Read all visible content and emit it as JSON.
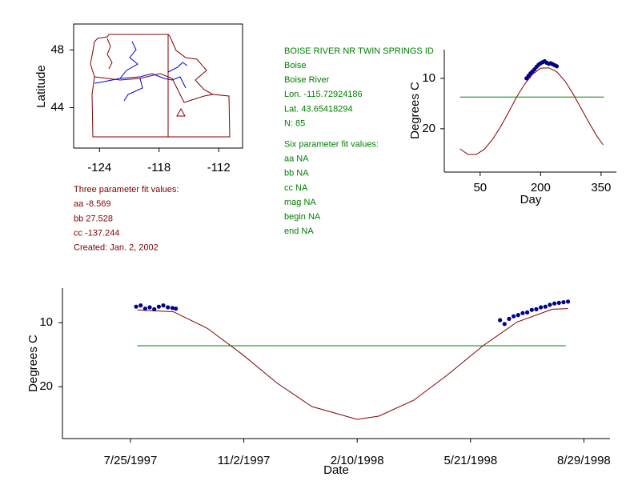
{
  "station_info": [
    "BOISE RIVER NR TWIN SPRINGS ID",
    "Boise",
    "Boise River",
    "Lon. -115.72924186",
    "Lat. 43.65418294",
    "N: 85",
    "Six parameter fit values:",
    "aa NA",
    "bb NA",
    "cc NA",
    "mag NA",
    "begin NA",
    "end NA"
  ],
  "three_parameter": [
    "Three parameter fit values:",
    "aa -8.569",
    "bb 27.528",
    "cc -137.244",
    "Created:   Jan. 2, 2002"
  ],
  "chart_data": [
    {
      "type": "map",
      "ylabel": "Latitude",
      "xlim": [
        -126.6,
        -109.6
      ],
      "ylim": [
        41.2,
        49.8
      ],
      "xticks": [
        -124,
        -118,
        -112
      ],
      "yticks": [
        44,
        48
      ]
    },
    {
      "type": "line",
      "xlabel": "Day",
      "ylabel": "Degrees C",
      "xlim": [
        -39,
        388
      ],
      "ylim": [
        28.6,
        4.3
      ],
      "xticks": [
        50,
        200,
        350
      ],
      "yticks": [
        20,
        10
      ],
      "series": [
        {
          "color": "#800000",
          "mode": "line",
          "x": [
            0,
            20,
            40,
            60,
            80,
            100,
            120,
            140,
            160,
            180,
            200,
            220,
            240,
            260,
            280,
            300,
            320,
            340,
            355
          ],
          "values": [
            24.0,
            25.1,
            25.1,
            24.1,
            22.2,
            19.7,
            16.8,
            13.8,
            11.2,
            9.2,
            8.0,
            7.9,
            8.7,
            10.5,
            13.0,
            15.9,
            18.8,
            21.5,
            23.2
          ]
        },
        {
          "color": "#008000",
          "mode": "line",
          "x": [
            0,
            357
          ],
          "values": [
            13.7,
            13.7
          ]
        },
        {
          "color": "#00008b",
          "mode": "points",
          "x": [
            165,
            170,
            175,
            180,
            185,
            190,
            195,
            200,
            205,
            210,
            215,
            220,
            225,
            230,
            235,
            240
          ],
          "values": [
            10.0,
            9.5,
            9.0,
            8.6,
            8.2,
            7.7,
            7.3,
            7.0,
            6.8,
            6.6,
            6.9,
            7.1,
            7.0,
            7.2,
            7.4,
            7.6
          ]
        }
      ]
    },
    {
      "type": "line",
      "xlabel": "Date",
      "ylabel": "Degrees C",
      "xlim": [
        "1997-05-26",
        "1998-09-21"
      ],
      "ylim": [
        28.1,
        4.6
      ],
      "xticks": [
        {
          "value": "1997-07-25",
          "label": "7/25/1997"
        },
        {
          "value": "1997-11-02",
          "label": "11/2/1997"
        },
        {
          "value": "1998-02-10",
          "label": "2/10/1998"
        },
        {
          "value": "1998-05-21",
          "label": "5/21/1998"
        },
        {
          "value": "1998-08-29",
          "label": "8/29/1998"
        }
      ],
      "yticks": [
        20,
        10
      ],
      "series": [
        {
          "color": "#800000",
          "mode": "line",
          "x": [
            "1997-07-31",
            "1997-09-01",
            "1997-10-01",
            "1997-11-01",
            "1997-12-01",
            "1998-01-01",
            "1998-02-10",
            "1998-03-01",
            "1998-04-01",
            "1998-05-01",
            "1998-06-01",
            "1998-07-01",
            "1998-08-01",
            "1998-08-15"
          ],
          "values": [
            8.0,
            8.3,
            10.9,
            15.0,
            19.4,
            23.1,
            25.1,
            24.6,
            22.1,
            18.1,
            13.6,
            9.9,
            7.9,
            7.8
          ]
        },
        {
          "color": "#008000",
          "mode": "line",
          "x": [
            "1997-07-31",
            "1998-08-13"
          ],
          "values": [
            13.6,
            13.6
          ]
        },
        {
          "color": "#00008b",
          "mode": "points",
          "x": [
            "1997-07-30",
            "1997-08-03",
            "1997-08-07",
            "1997-08-11",
            "1997-08-15",
            "1997-08-19",
            "1997-08-23",
            "1997-08-27",
            "1997-08-31",
            "1997-09-03",
            "1998-06-16",
            "1998-06-20",
            "1998-06-24",
            "1998-06-28",
            "1998-07-02",
            "1998-07-06",
            "1998-07-10",
            "1998-07-14",
            "1998-07-18",
            "1998-07-22",
            "1998-07-26",
            "1998-07-30",
            "1998-08-03",
            "1998-08-07",
            "1998-08-11",
            "1998-08-15"
          ],
          "values": [
            7.5,
            7.3,
            7.8,
            7.6,
            7.9,
            7.5,
            7.3,
            7.6,
            7.7,
            7.8,
            9.6,
            10.2,
            9.4,
            9.0,
            8.8,
            8.5,
            8.4,
            8.0,
            7.9,
            7.6,
            7.5,
            7.2,
            7.0,
            6.9,
            6.8,
            6.7
          ]
        }
      ]
    }
  ]
}
